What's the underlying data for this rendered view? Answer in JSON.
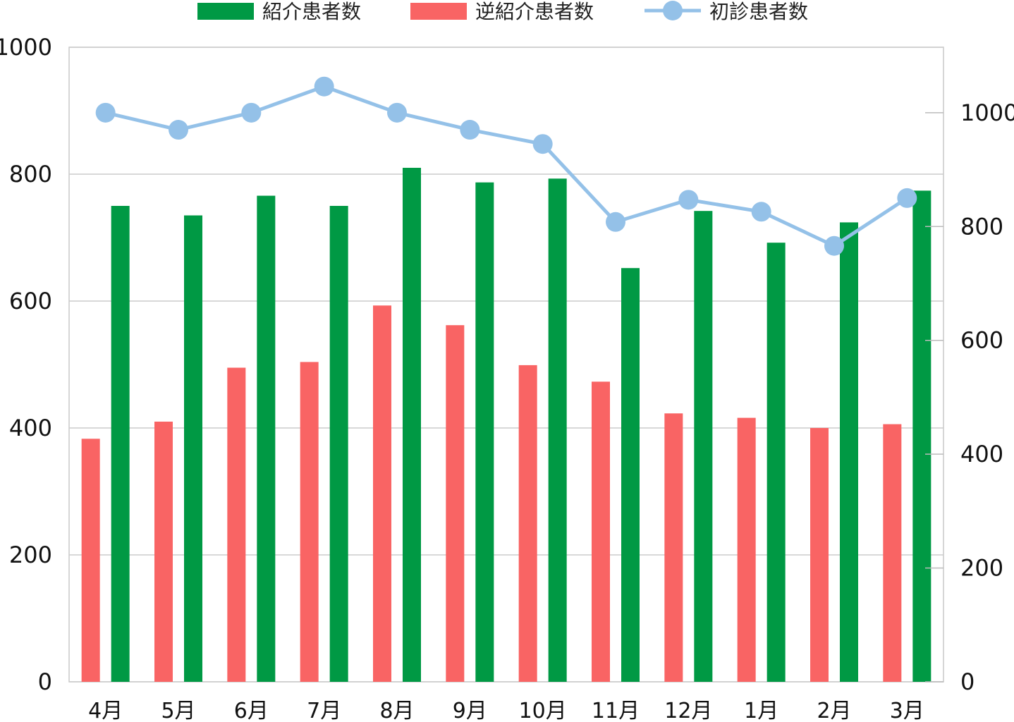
{
  "chart_data": {
    "type": "bar",
    "categories": [
      "4月",
      "5月",
      "6月",
      "7月",
      "8月",
      "9月",
      "10月",
      "11月",
      "12月",
      "1月",
      "2月",
      "3月"
    ],
    "series": [
      {
        "name": "逆紹介患者数",
        "kind": "bar",
        "axis": "left",
        "color": "#f96464",
        "values": [
          383,
          410,
          495,
          504,
          593,
          562,
          499,
          473,
          423,
          416,
          400,
          406
        ]
      },
      {
        "name": "紹介患者数",
        "kind": "bar",
        "axis": "left",
        "color": "#009944",
        "values": [
          750,
          735,
          766,
          750,
          810,
          787,
          793,
          652,
          742,
          692,
          724,
          774
        ]
      },
      {
        "name": "初診患者数",
        "kind": "line",
        "axis": "right",
        "color": "#94c1e8",
        "values": [
          1000,
          970,
          1000,
          1046,
          1000,
          970,
          945,
          808,
          847,
          826,
          766,
          850
        ]
      }
    ],
    "legend_order": [
      "紹介患者数",
      "逆紹介患者数",
      "初診患者数"
    ],
    "left_axis": {
      "min": 0,
      "max": 1000,
      "ticks": [
        "0",
        "200",
        "400",
        "600",
        "800",
        "1000"
      ]
    },
    "right_axis": {
      "min": 0,
      "max": 1115,
      "ticks": [
        "0",
        "200",
        "400",
        "600",
        "800",
        "1000"
      ]
    },
    "grid": true,
    "legend_position": "top"
  }
}
